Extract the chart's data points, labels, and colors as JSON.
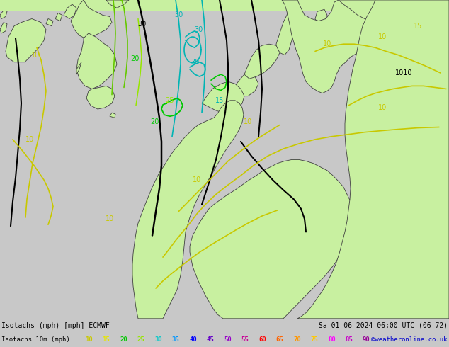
{
  "title_left": "Isotachs (mph) [mph] ECMWF",
  "title_right": "Sa 01-06-2024 06:00 UTC (06+72)",
  "legend_label": "Isotachs 10m (mph)",
  "watermark": "©weatheronline.co.uk",
  "bg_color_land": "#c8f0a0",
  "bg_color_sea": "#e8e8e8",
  "bg_color_bar": "#c8c8c8",
  "speed_values": [
    10,
    15,
    20,
    25,
    30,
    35,
    40,
    45,
    50,
    55,
    60,
    65,
    70,
    75,
    80,
    85,
    90
  ],
  "speed_colors": [
    "#c8c800",
    "#e6e600",
    "#00c800",
    "#96e600",
    "#00c8c8",
    "#0096ff",
    "#0000ff",
    "#6400c8",
    "#9600c8",
    "#c80096",
    "#ff0000",
    "#ff6400",
    "#ff9600",
    "#ffc800",
    "#ff00ff",
    "#c800c8",
    "#960096"
  ],
  "figsize": [
    6.34,
    4.9
  ],
  "dpi": 100,
  "map_extent": [
    -12.0,
    22.0,
    44.0,
    62.0
  ],
  "land_color": "#c8f0a0",
  "sea_color": "#e0e0e0",
  "coastline_color": "#404040",
  "contour_label_color_black": "#000000",
  "contour_label_color_cyan": "#00b4b4",
  "contour_label_color_green": "#00c800",
  "contour_label_color_yellow": "#c8c800"
}
